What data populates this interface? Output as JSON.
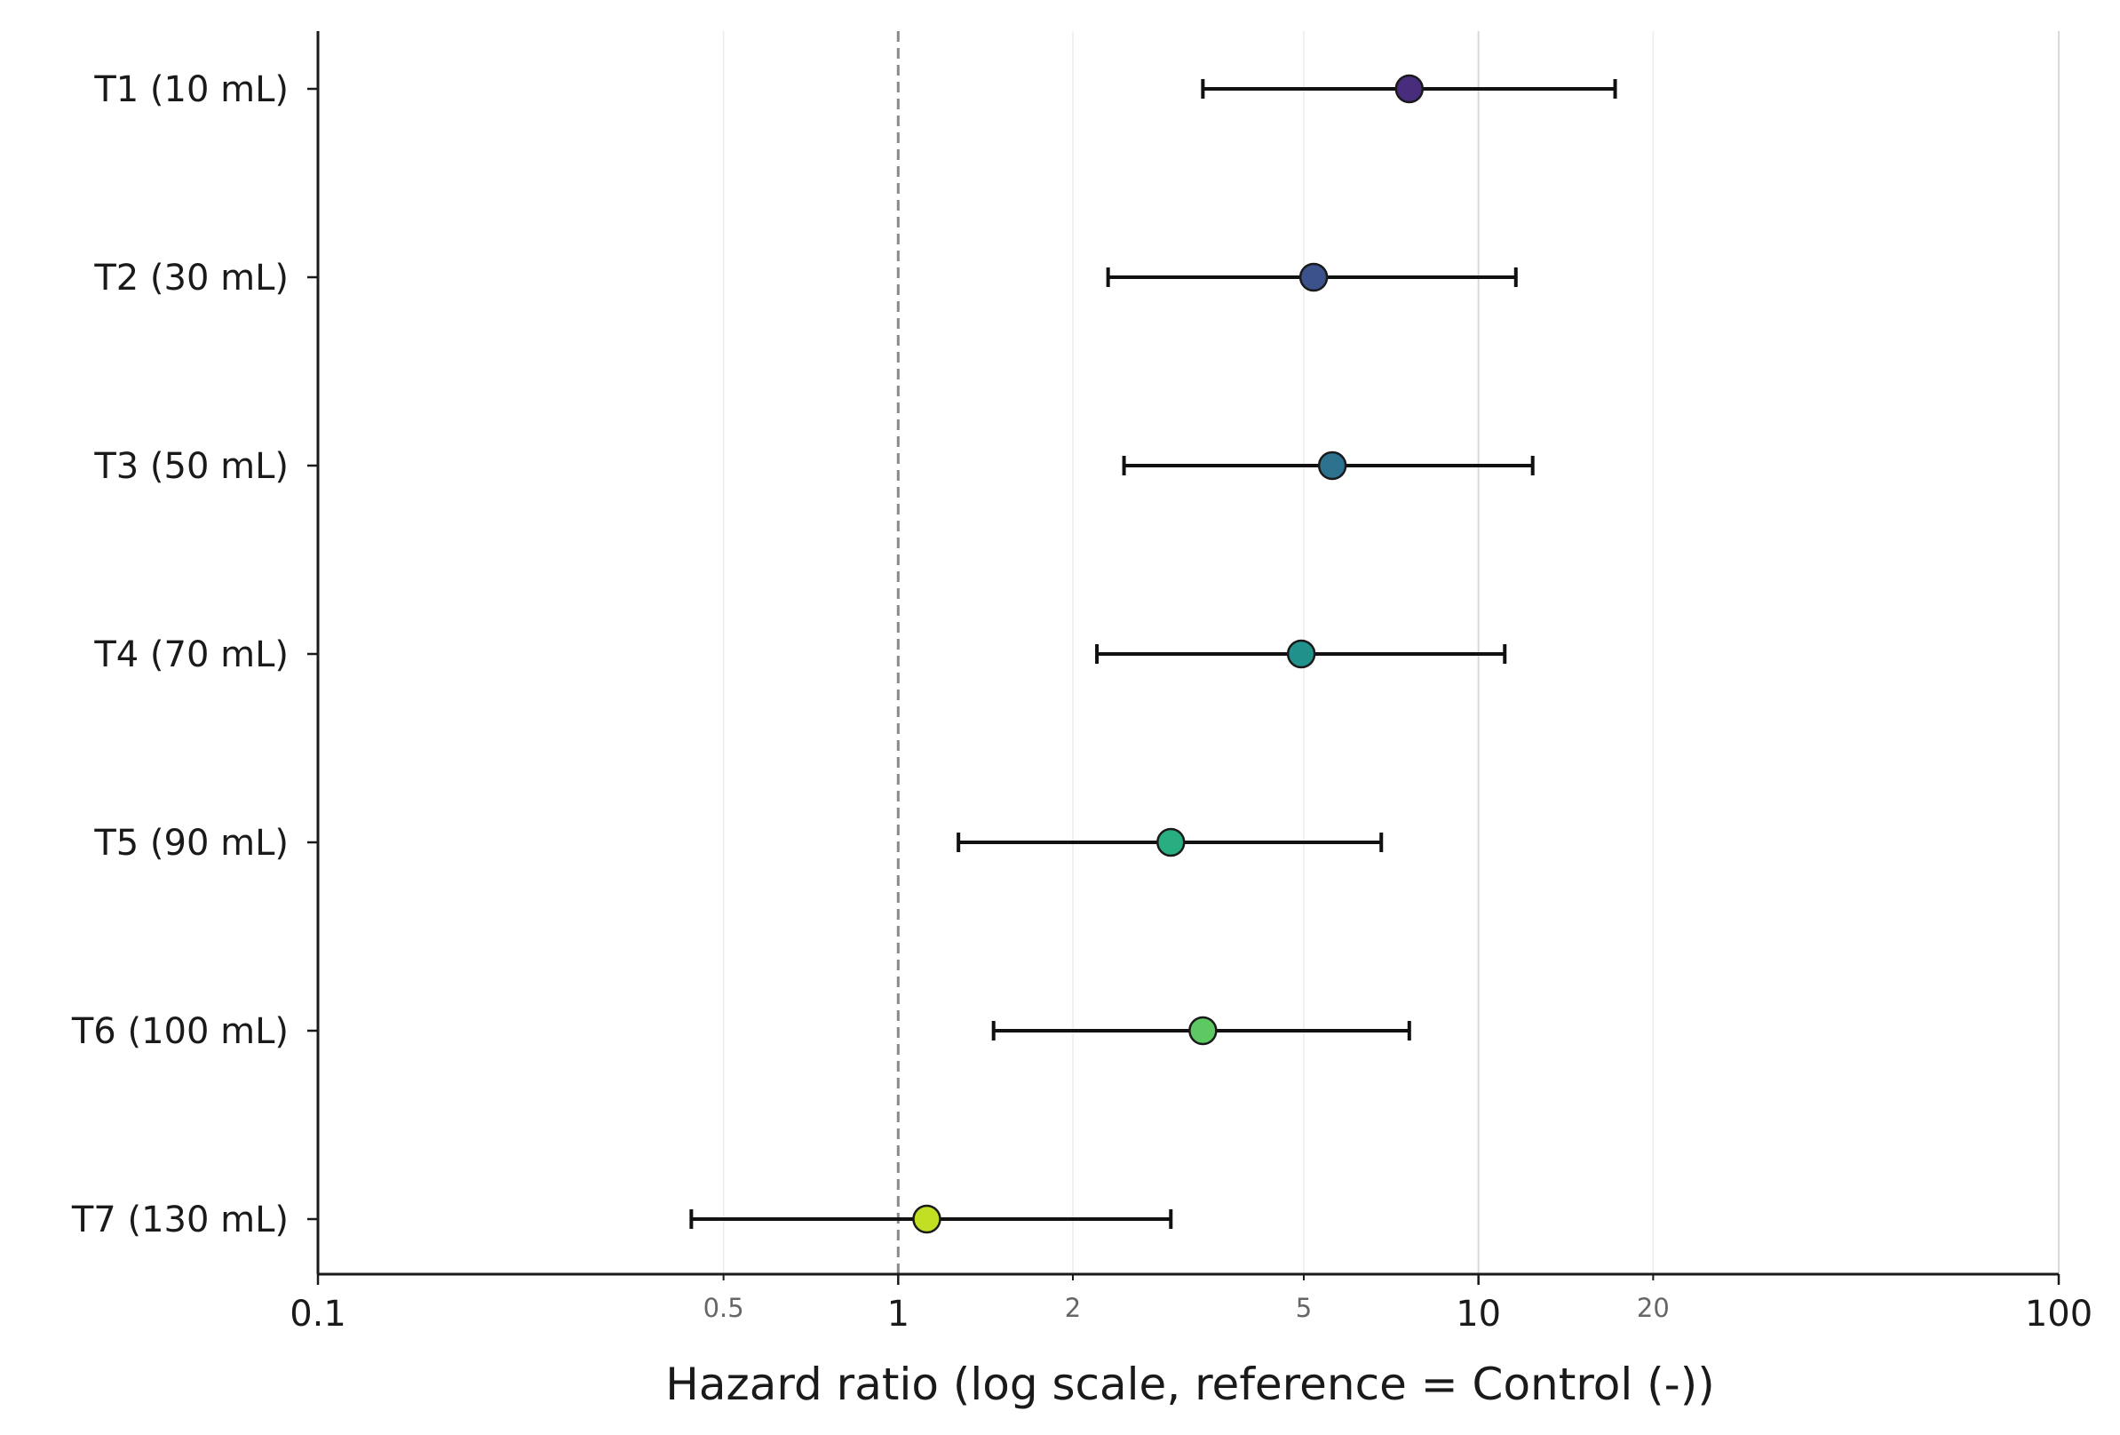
{
  "chart_data": {
    "type": "forest",
    "xlabel": "Hazard ratio (log scale, reference = Control (-))",
    "ylabel": "",
    "xscale": "log",
    "xlim": [
      0.1,
      100
    ],
    "major_ticks": [
      {
        "value": 0.1,
        "label": "0.1"
      },
      {
        "value": 1,
        "label": "1"
      },
      {
        "value": 10,
        "label": "10"
      },
      {
        "value": 100,
        "label": "100"
      }
    ],
    "minor_ticks": [
      {
        "value": 0.5,
        "label": "0.5"
      },
      {
        "value": 2,
        "label": "2"
      },
      {
        "value": 5,
        "label": "5"
      },
      {
        "value": 20,
        "label": "20"
      }
    ],
    "reference_line": 1,
    "grid": "vertical",
    "legend": "none",
    "categories": [
      "T1 (10 mL)",
      "T2 (30 mL)",
      "T3 (50 mL)",
      "T4 (70 mL)",
      "T5 (90 mL)",
      "T6 (100 mL)",
      "T7 (130 mL)"
    ],
    "hr": [
      7.6,
      5.2,
      5.6,
      4.95,
      2.95,
      3.35,
      1.12
    ],
    "ci_low": [
      3.35,
      2.3,
      2.45,
      2.2,
      1.27,
      1.46,
      0.44
    ],
    "ci_high": [
      17.2,
      11.6,
      12.4,
      11.1,
      6.8,
      7.6,
      2.95
    ],
    "colors": [
      "#472d7b",
      "#3b528b",
      "#2c728e",
      "#21918c",
      "#28ae80",
      "#5ec962",
      "#c2df23"
    ]
  }
}
